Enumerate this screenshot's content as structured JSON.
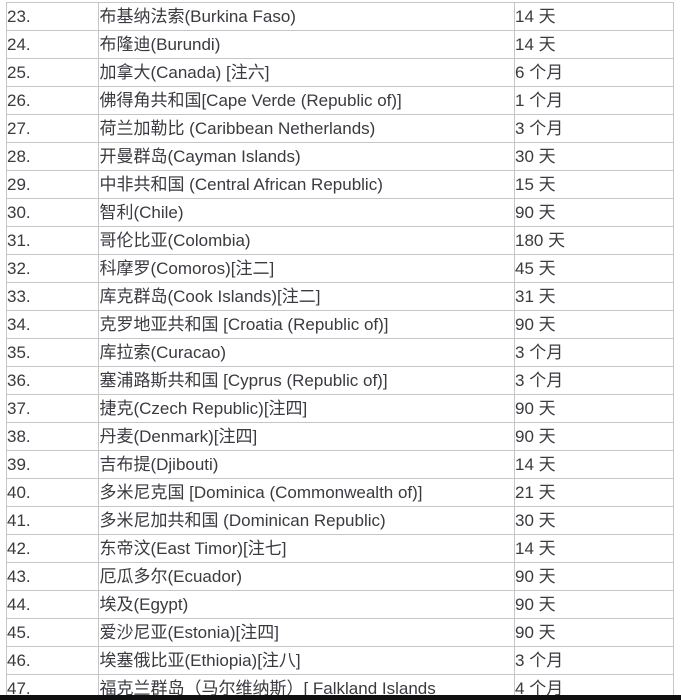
{
  "colors": {
    "text": "#3a3a40",
    "border": "#c6c6c6",
    "background": "#ffffff",
    "bottom_bar": "#101010"
  },
  "table": {
    "rows": [
      {
        "num": "23.",
        "country": "布基纳法索(Burkina Faso)",
        "duration": "14 天"
      },
      {
        "num": "24.",
        "country": "布隆迪(Burundi)",
        "duration": "14 天"
      },
      {
        "num": "25.",
        "country": "加拿大(Canada) [注六]",
        "duration": "6 个月"
      },
      {
        "num": "26.",
        "country": "佛得角共和国[Cape Verde (Republic of)]",
        "duration": "1 个月"
      },
      {
        "num": "27.",
        "country": "荷兰加勒比 (Caribbean Netherlands)",
        "duration": "3 个月"
      },
      {
        "num": "28.",
        "country": "开曼群岛(Cayman Islands)",
        "duration": "30 天"
      },
      {
        "num": "29.",
        "country": "中非共和国 (Central African Republic)",
        "duration": "15 天"
      },
      {
        "num": "30.",
        "country": "智利(Chile)",
        "duration": "90 天"
      },
      {
        "num": "31.",
        "country": "哥伦比亚(Colombia)",
        "duration": "180 天"
      },
      {
        "num": "32.",
        "country": "科摩罗(Comoros)[注二]",
        "duration": "45 天"
      },
      {
        "num": "33.",
        "country": "库克群岛(Cook Islands)[注二]",
        "duration": "31 天"
      },
      {
        "num": "34.",
        "country": "克罗地亚共和国 [Croatia (Republic of)]",
        "duration": "90 天"
      },
      {
        "num": "35.",
        "country": "库拉索(Curacao)",
        "duration": "3 个月"
      },
      {
        "num": "36.",
        "country": "塞浦路斯共和国 [Cyprus (Republic of)]",
        "duration": "3 个月"
      },
      {
        "num": "37.",
        "country": "捷克(Czech Republic)[注四]",
        "duration": "90 天"
      },
      {
        "num": "38.",
        "country": "丹麦(Denmark)[注四]",
        "duration": "90 天"
      },
      {
        "num": "39.",
        "country": "吉布提(Djibouti)",
        "duration": "14 天"
      },
      {
        "num": "40.",
        "country": "多米尼克国 [Dominica (Commonwealth of)]",
        "duration": "21 天"
      },
      {
        "num": "41.",
        "country": "多米尼加共和国 (Dominican Republic)",
        "duration": "30 天"
      },
      {
        "num": "42.",
        "country": "东帝汶(East Timor)[注七]",
        "duration": "14 天"
      },
      {
        "num": "43.",
        "country": "厄瓜多尔(Ecuador)",
        "duration": "90 天"
      },
      {
        "num": "44.",
        "country": "埃及(Egypt)",
        "duration": "90 天"
      },
      {
        "num": "45.",
        "country": "爱沙尼亚(Estonia)[注四]",
        "duration": "90 天"
      },
      {
        "num": "46.",
        "country": "埃塞俄比亚(Ethiopia)[注八]",
        "duration": "3 个月"
      },
      {
        "num": "47.",
        "country": "福克兰群岛（马尔维纳斯）[ Falkland Islands",
        "duration": "4 个月"
      }
    ]
  }
}
